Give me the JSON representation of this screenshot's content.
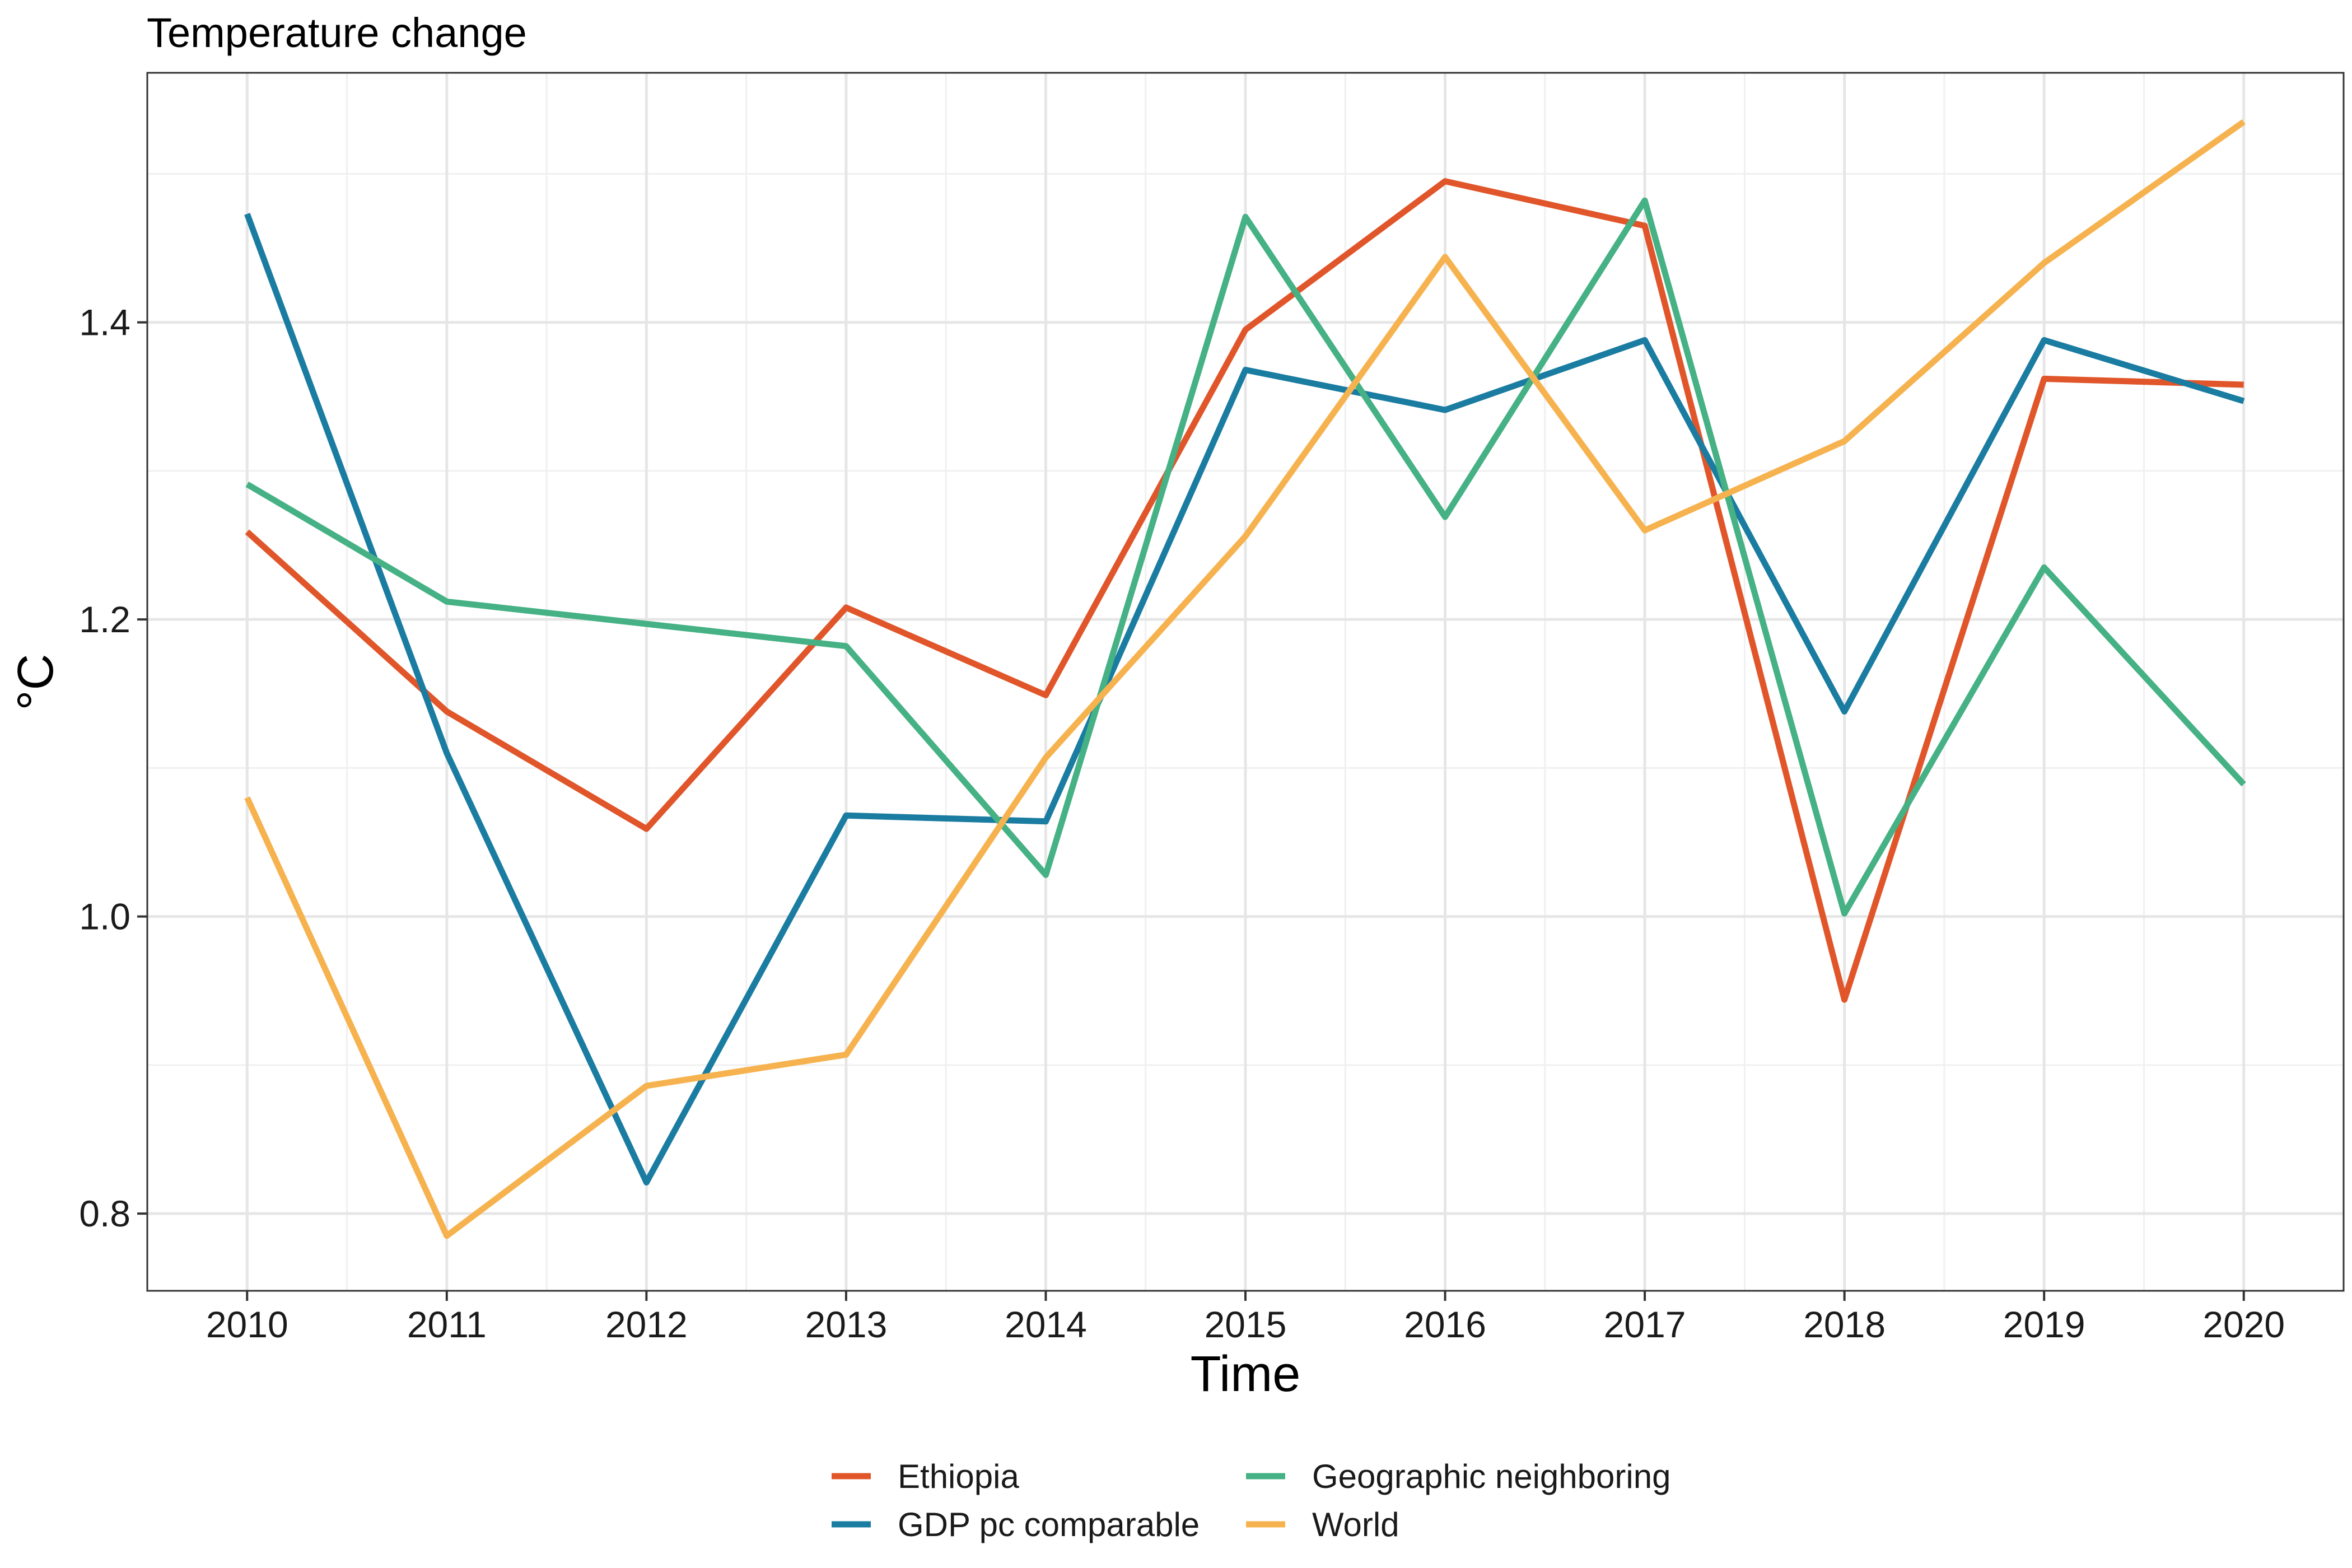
{
  "chart_data": {
    "type": "line",
    "title": "Temperature change",
    "xlabel": "Time",
    "ylabel": "°C",
    "x": [
      2010,
      2011,
      2012,
      2013,
      2014,
      2015,
      2016,
      2017,
      2018,
      2019,
      2020
    ],
    "x_tick_labels": [
      "2010",
      "2011",
      "2012",
      "2013",
      "2014",
      "2015",
      "2016",
      "2017",
      "2018",
      "2019",
      "2020"
    ],
    "y_ticks": [
      0.8,
      1.0,
      1.2,
      1.4
    ],
    "y_tick_labels": [
      "0.8",
      "1.0",
      "1.2",
      "1.4"
    ],
    "xlim": [
      2009.5,
      2020.5
    ],
    "ylim": [
      0.748,
      1.568
    ],
    "grid": true,
    "legend_position": "bottom",
    "series": [
      {
        "name": "Ethiopia",
        "color": "#E0562A",
        "values": [
          1.259,
          1.138,
          1.059,
          1.208,
          1.149,
          1.395,
          1.495,
          1.465,
          0.944,
          1.362,
          1.358
        ]
      },
      {
        "name": "GDP pc comparable",
        "color": "#1A7CA1",
        "values": [
          1.473,
          1.11,
          0.821,
          1.068,
          1.064,
          1.368,
          1.341,
          1.388,
          1.138,
          1.388,
          1.347
        ]
      },
      {
        "name": "Geographic neighboring",
        "color": "#45B184",
        "values": [
          1.291,
          1.212,
          null,
          1.182,
          1.028,
          1.471,
          1.269,
          1.482,
          1.002,
          1.235,
          1.089
        ]
      },
      {
        "name": "World",
        "color": "#F6B24E",
        "values": [
          1.08,
          0.785,
          0.886,
          0.907,
          1.107,
          1.256,
          1.444,
          1.26,
          1.32,
          1.44,
          1.535
        ]
      }
    ]
  }
}
